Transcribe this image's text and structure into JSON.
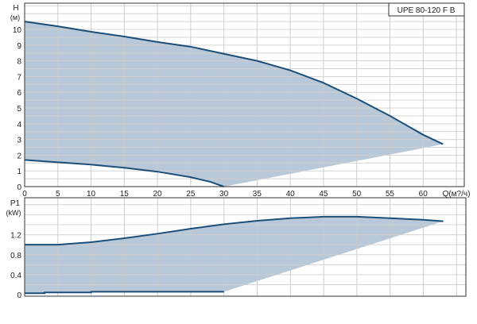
{
  "chart_data": [
    {
      "type": "area",
      "title": "UPE 80-120 F B",
      "ylabel": "H",
      "yunit": "(м)",
      "xlabel": "Q(м?/ч)",
      "xlim": [
        0,
        66.2
      ],
      "ylim": [
        0,
        11.67
      ],
      "xticks": [
        0,
        5,
        10,
        15,
        20,
        25,
        30,
        35,
        40,
        45,
        50,
        55,
        60
      ],
      "yticks": [
        0,
        1,
        2,
        3,
        4,
        5,
        6,
        7,
        8,
        9,
        10
      ],
      "grid": true,
      "fill_color": "#b8c8d8",
      "line_color": "#1b4f7a",
      "series": [
        {
          "x": [
            0,
            5,
            10,
            15,
            20,
            25,
            30,
            35,
            40,
            45,
            50,
            55,
            60,
            63
          ],
          "y": [
            10.5,
            10.2,
            9.85,
            9.55,
            9.2,
            8.9,
            8.45,
            8.0,
            7.4,
            6.6,
            5.6,
            4.5,
            3.3,
            2.7
          ]
        },
        {
          "x": [
            0,
            5,
            10,
            15,
            20,
            25,
            28,
            30
          ],
          "y": [
            1.7,
            1.55,
            1.4,
            1.2,
            0.95,
            0.6,
            0.3,
            0
          ]
        }
      ],
      "envelope_lower": {
        "x": [
          30,
          60,
          63
        ],
        "y": [
          0,
          2.45,
          2.7
        ]
      }
    },
    {
      "type": "area",
      "ylabel": "P1",
      "yunit": "(kW)",
      "xlim": [
        0,
        66.4
      ],
      "ylim": [
        -0.03,
        1.94
      ],
      "yticks": [
        0,
        0.4,
        0.8,
        1.2
      ],
      "ytick_labels": [
        "0",
        "0.4",
        "0.8",
        "1.2"
      ],
      "grid": true,
      "fill_color": "#b8c8d8",
      "line_color": "#1b4f7a",
      "series": [
        {
          "x": [
            0,
            5,
            10,
            15,
            20,
            25,
            30,
            35,
            40,
            45,
            50,
            55,
            60,
            63
          ],
          "y": [
            1.0,
            1.0,
            1.05,
            1.13,
            1.22,
            1.32,
            1.41,
            1.48,
            1.53,
            1.56,
            1.56,
            1.53,
            1.5,
            1.47
          ]
        },
        {
          "x": [
            0,
            3,
            3,
            10,
            10,
            30
          ],
          "y": [
            0.03,
            0.03,
            0.045,
            0.045,
            0.06,
            0.06
          ]
        }
      ],
      "envelope_lower": {
        "x": [
          30,
          63
        ],
        "y": [
          0.06,
          1.47
        ]
      }
    }
  ]
}
